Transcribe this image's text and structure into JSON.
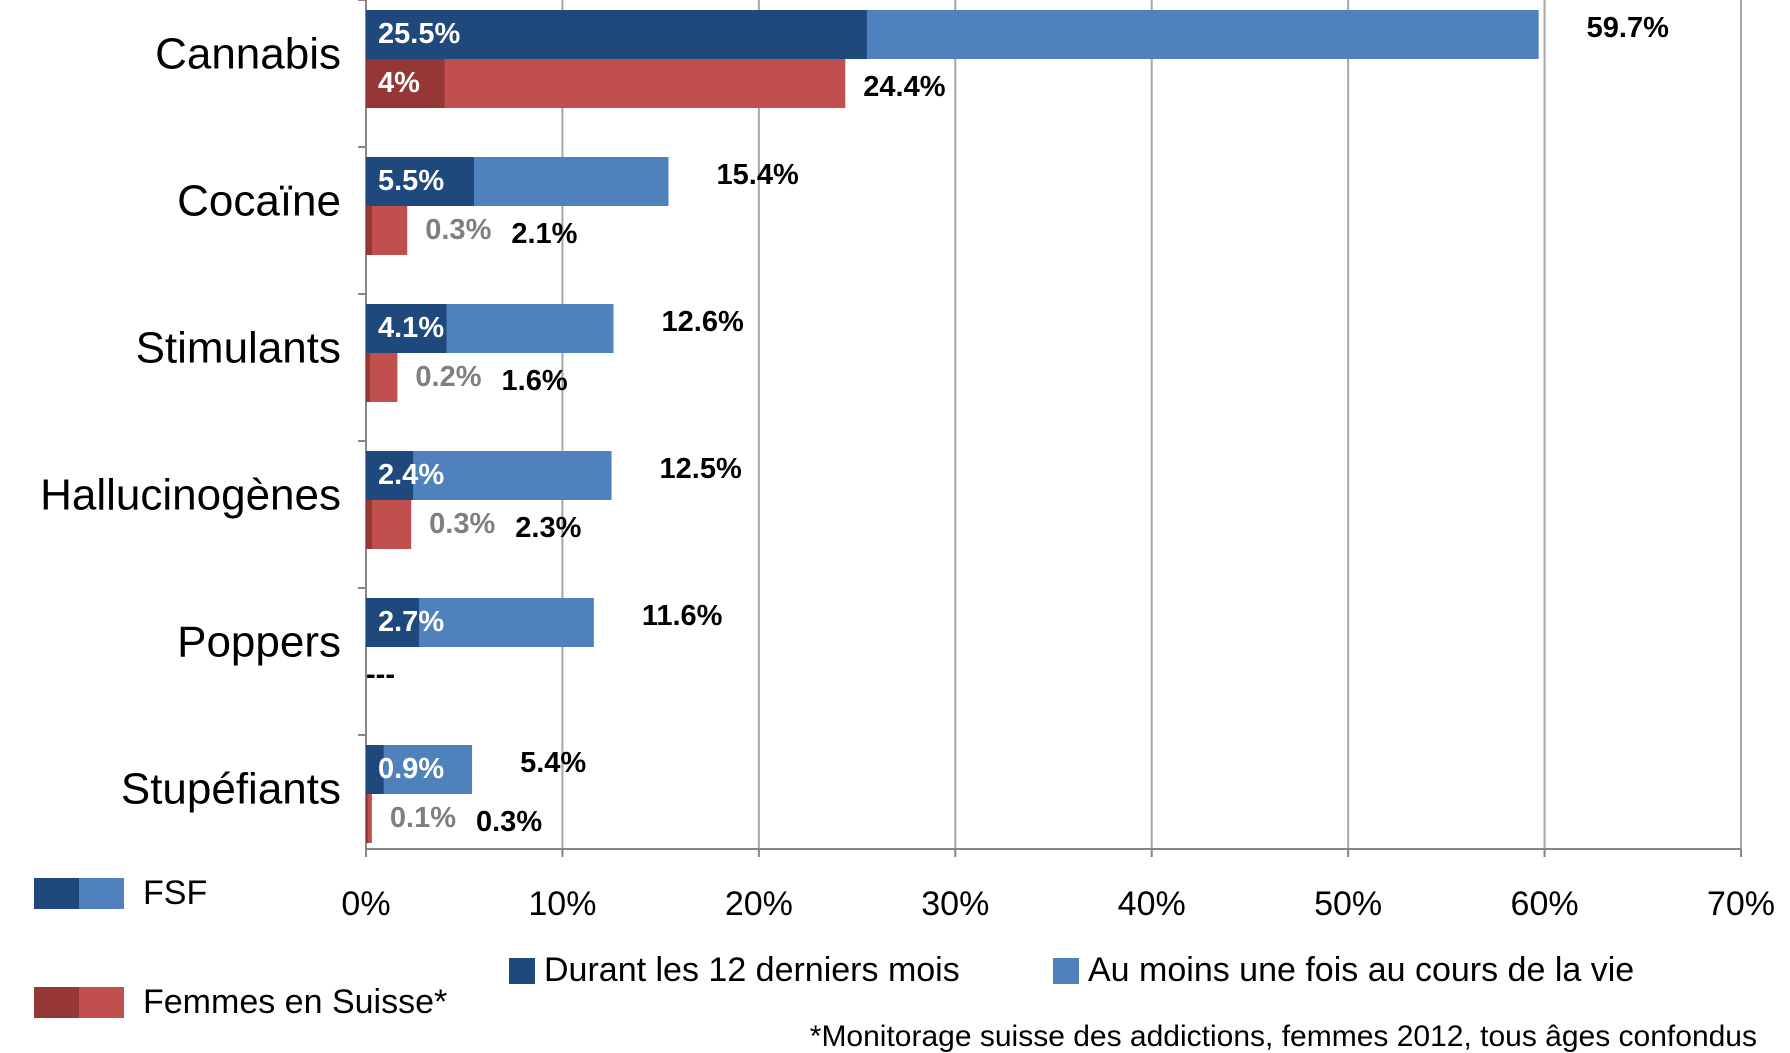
{
  "chart_data": {
    "type": "bar",
    "orientation": "horizontal",
    "categories": [
      "Cannabis",
      "Cocaïne",
      "Stimulants",
      "Hallucinogènes",
      "Poppers",
      "Stupéfiants"
    ],
    "groups": [
      {
        "name": "FSF",
        "series": [
          {
            "color": "#1f497d",
            "values": [
              25.5,
              5.5,
              4.1,
              2.4,
              2.7,
              0.9
            ],
            "value_labels": [
              "25.5%",
              "5.5%",
              "4.1%",
              "2.4%",
              "2.7%",
              "0.9%"
            ]
          },
          {
            "color": "#4f81bd",
            "values": [
              59.7,
              15.4,
              12.6,
              12.5,
              11.6,
              5.4
            ],
            "value_labels": [
              "59.7%",
              "15.4%",
              "12.6%",
              "12.5%",
              "11.6%",
              "5.4%"
            ]
          }
        ]
      },
      {
        "name": "Femmes en Suisse*",
        "series": [
          {
            "color": "#953735",
            "values": [
              4,
              0.3,
              0.2,
              0.3,
              null,
              0.1
            ],
            "value_labels": [
              "4%",
              "0.3%",
              "0.2%",
              "0.3%",
              null,
              "0.1%"
            ]
          },
          {
            "color": "#c0504d",
            "values": [
              24.4,
              2.1,
              1.6,
              2.3,
              null,
              0.3
            ],
            "value_labels": [
              "24.4%",
              "2.1%",
              "1.6%",
              "2.3%",
              "---",
              "0.3%"
            ]
          }
        ]
      }
    ],
    "periods": [
      "Durant les 12 derniers mois",
      "Au moins une fois au cours de la vie"
    ],
    "period_colors": [
      "#1f497d",
      "#4f81bd"
    ],
    "xlim": [
      0,
      70
    ],
    "xticks": [
      {
        "value": 0,
        "label": "0%"
      },
      {
        "value": 10,
        "label": "10%"
      },
      {
        "value": 20,
        "label": "20%"
      },
      {
        "value": 30,
        "label": "30%"
      },
      {
        "value": 40,
        "label": "40%"
      },
      {
        "value": 50,
        "label": "50%"
      },
      {
        "value": 60,
        "label": "60%"
      },
      {
        "value": 70,
        "label": "70%"
      }
    ],
    "grid": true,
    "footnote": "*Monitorage suisse des addictions, femmes 2012, tous âges confondus"
  }
}
